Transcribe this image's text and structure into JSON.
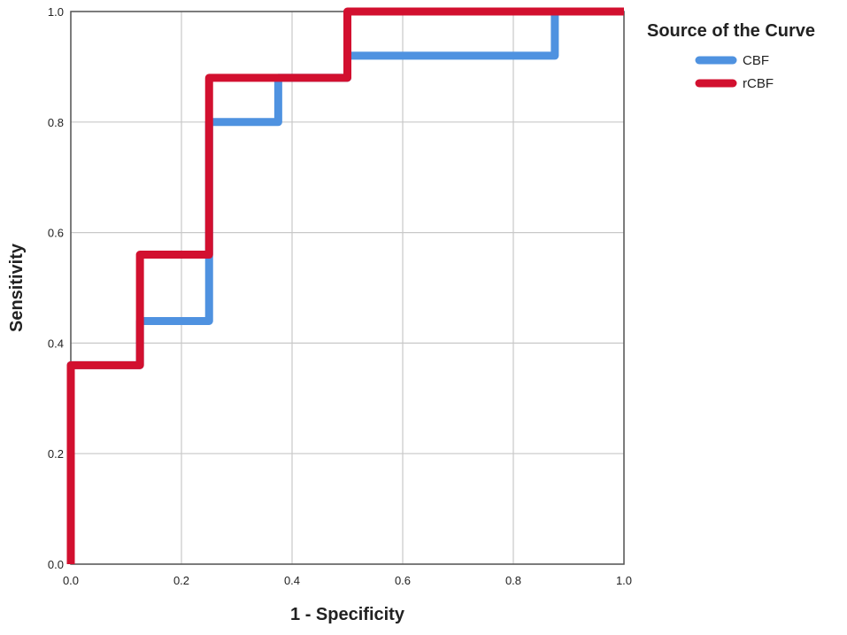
{
  "chart_data": {
    "type": "line",
    "step": true,
    "xlabel": "1 - Specificity",
    "ylabel": "Sensitivity",
    "xlim": [
      0,
      1
    ],
    "ylim": [
      0,
      1
    ],
    "xticks": [
      "0.0",
      "0.2",
      "0.4",
      "0.6",
      "0.8",
      "1.0"
    ],
    "yticks": [
      "0.0",
      "0.2",
      "0.4",
      "0.6",
      "0.8",
      "1.0"
    ],
    "grid": true,
    "legend": {
      "title": "Source of the Curve",
      "position": "right"
    },
    "series": [
      {
        "name": "CBF",
        "color": "#4f92e0",
        "points": [
          [
            0,
            0
          ],
          [
            0,
            0.36
          ],
          [
            0.125,
            0.36
          ],
          [
            0.125,
            0.44
          ],
          [
            0.25,
            0.44
          ],
          [
            0.25,
            0.8
          ],
          [
            0.375,
            0.8
          ],
          [
            0.375,
            0.88
          ],
          [
            0.5,
            0.88
          ],
          [
            0.5,
            0.92
          ],
          [
            0.875,
            0.92
          ],
          [
            0.875,
            1.0
          ],
          [
            1.0,
            1.0
          ]
        ]
      },
      {
        "name": "rCBF",
        "color": "#d2102f",
        "points": [
          [
            0,
            0
          ],
          [
            0,
            0.36
          ],
          [
            0.125,
            0.36
          ],
          [
            0.125,
            0.56
          ],
          [
            0.25,
            0.56
          ],
          [
            0.25,
            0.88
          ],
          [
            0.5,
            0.88
          ],
          [
            0.5,
            1.0
          ],
          [
            1.0,
            1.0
          ]
        ]
      }
    ]
  }
}
